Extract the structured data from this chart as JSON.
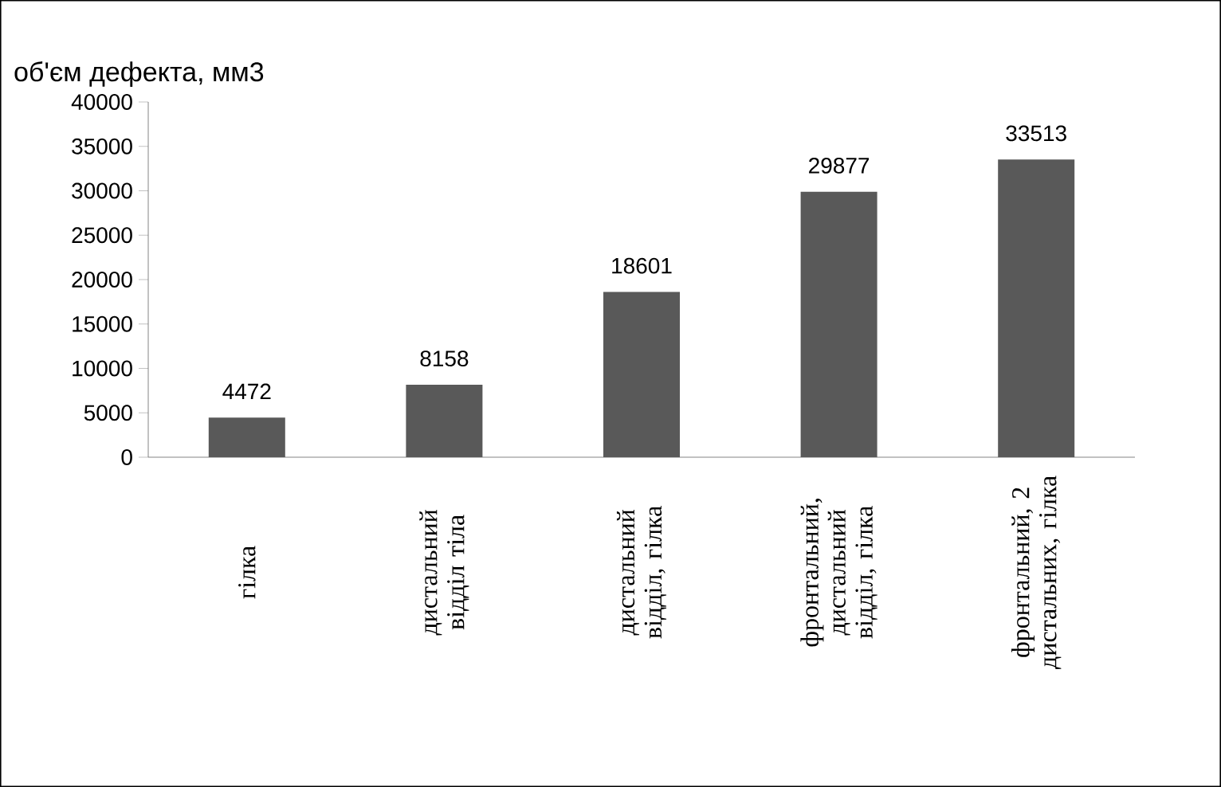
{
  "chart_data": {
    "type": "bar",
    "title": "об'єм дефекта, мм3",
    "categories": [
      "гілка",
      "дистальний відділ тіла",
      "дистальний відділ, гілка",
      "фронтальний, дистальний відділ, гілка",
      "фронтальний, 2 дистальних, гілка"
    ],
    "values": [
      4472,
      8158,
      18601,
      29877,
      33513
    ],
    "color": "#595959",
    "ylim": [
      0,
      40000
    ],
    "yticks": [
      0,
      5000,
      10000,
      15000,
      20000,
      25000,
      30000,
      35000,
      40000
    ],
    "data_labels": true,
    "grid": false
  }
}
